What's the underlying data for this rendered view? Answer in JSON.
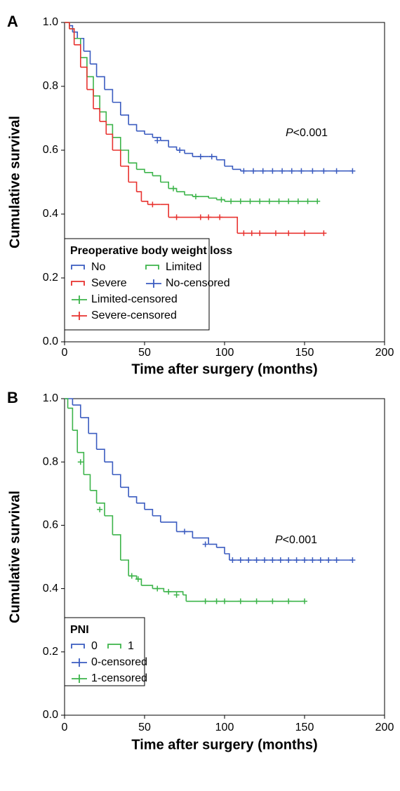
{
  "chart_data": [
    {
      "type": "line",
      "panel_label": "A",
      "ylabel": "Cumulative survival",
      "xlabel": "Time after surgery (months)",
      "xlim": [
        0,
        200
      ],
      "xticks": [
        0,
        50,
        100,
        150,
        200
      ],
      "ylim": [
        0,
        1
      ],
      "yticks": [
        {
          "value": 0,
          "label": "0.0"
        },
        {
          "value": 0.2,
          "label": "0.2"
        },
        {
          "value": 0.4,
          "label": "0.4"
        },
        {
          "value": 0.6,
          "label": "0.6"
        },
        {
          "value": 0.8,
          "label": "0.8"
        },
        {
          "value": 1,
          "label": "1.0"
        }
      ],
      "annotation": {
        "italic": "P",
        "text": "<0.001"
      },
      "legend": {
        "title": "Preoperative body weight loss",
        "position": "lower left"
      },
      "series": [
        {
          "name": "No",
          "color": "#3b5cc0",
          "style": "step",
          "x": [
            0,
            3,
            5,
            8,
            12,
            16,
            20,
            25,
            30,
            35,
            40,
            45,
            50,
            55,
            60,
            65,
            70,
            75,
            80,
            90,
            95,
            100,
            105,
            110,
            180
          ],
          "values": [
            1,
            0.99,
            0.97,
            0.95,
            0.91,
            0.87,
            0.83,
            0.79,
            0.75,
            0.71,
            0.68,
            0.66,
            0.65,
            0.64,
            0.63,
            0.61,
            0.6,
            0.59,
            0.58,
            0.58,
            0.57,
            0.55,
            0.54,
            0.535,
            0.535
          ]
        },
        {
          "name": "Limited",
          "color": "#3cb44a",
          "style": "step",
          "x": [
            0,
            3,
            6,
            10,
            14,
            18,
            22,
            26,
            30,
            35,
            40,
            45,
            50,
            55,
            60,
            65,
            70,
            75,
            80,
            90,
            95,
            100,
            158
          ],
          "values": [
            1,
            0.98,
            0.95,
            0.89,
            0.83,
            0.77,
            0.72,
            0.68,
            0.64,
            0.6,
            0.56,
            0.54,
            0.53,
            0.52,
            0.5,
            0.48,
            0.47,
            0.46,
            0.455,
            0.45,
            0.445,
            0.44,
            0.44
          ]
        },
        {
          "name": "Severe",
          "color": "#e8322f",
          "style": "step",
          "x": [
            0,
            3,
            6,
            10,
            14,
            18,
            22,
            26,
            30,
            35,
            40,
            45,
            48,
            52,
            60,
            65,
            107,
            108,
            162
          ],
          "values": [
            1,
            0.98,
            0.93,
            0.86,
            0.79,
            0.73,
            0.69,
            0.65,
            0.6,
            0.55,
            0.5,
            0.47,
            0.44,
            0.43,
            0.43,
            0.39,
            0.39,
            0.34,
            0.34
          ]
        },
        {
          "name": "No-censored",
          "color": "#3b5cc0",
          "style": "censor",
          "x": [
            58,
            72,
            85,
            92,
            112,
            118,
            124,
            130,
            136,
            142,
            148,
            155,
            162,
            170,
            180
          ],
          "values": [
            0.63,
            0.6,
            0.58,
            0.58,
            0.535,
            0.535,
            0.535,
            0.535,
            0.535,
            0.535,
            0.535,
            0.535,
            0.535,
            0.535,
            0.535
          ]
        },
        {
          "name": "Limited-censored",
          "color": "#3cb44a",
          "style": "censor",
          "x": [
            68,
            82,
            98,
            104,
            110,
            116,
            122,
            128,
            134,
            140,
            146,
            152,
            158
          ],
          "values": [
            0.48,
            0.455,
            0.445,
            0.44,
            0.44,
            0.44,
            0.44,
            0.44,
            0.44,
            0.44,
            0.44,
            0.44,
            0.44
          ]
        },
        {
          "name": "Severe-censored",
          "color": "#e8322f",
          "style": "censor",
          "x": [
            55,
            70,
            85,
            90,
            97,
            112,
            117,
            122,
            132,
            140,
            150,
            162
          ],
          "values": [
            0.43,
            0.39,
            0.39,
            0.39,
            0.39,
            0.34,
            0.34,
            0.34,
            0.34,
            0.34,
            0.34,
            0.34
          ]
        }
      ]
    },
    {
      "type": "line",
      "panel_label": "B",
      "ylabel": "Cumulative survival",
      "xlabel": "Time after surgery (months)",
      "xlim": [
        0,
        200
      ],
      "xticks": [
        0,
        50,
        100,
        150,
        200
      ],
      "ylim": [
        0,
        1
      ],
      "yticks": [
        {
          "value": 0,
          "label": "0.0"
        },
        {
          "value": 0.2,
          "label": "0.2"
        },
        {
          "value": 0.4,
          "label": "0.4"
        },
        {
          "value": 0.6,
          "label": "0.6"
        },
        {
          "value": 0.8,
          "label": "0.8"
        },
        {
          "value": 1,
          "label": "1.0"
        }
      ],
      "annotation": {
        "italic": "P",
        "text": "<0.001"
      },
      "legend": {
        "title": "PNI",
        "position": "lower left"
      },
      "series": [
        {
          "name": "0",
          "color": "#3b5cc0",
          "style": "step",
          "x": [
            0,
            5,
            10,
            15,
            20,
            25,
            30,
            35,
            40,
            45,
            50,
            55,
            60,
            70,
            80,
            90,
            95,
            100,
            103,
            180
          ],
          "values": [
            1,
            0.98,
            0.94,
            0.89,
            0.84,
            0.8,
            0.76,
            0.72,
            0.69,
            0.67,
            0.65,
            0.63,
            0.61,
            0.58,
            0.56,
            0.54,
            0.53,
            0.51,
            0.49,
            0.49
          ]
        },
        {
          "name": "1",
          "color": "#3cb44a",
          "style": "step",
          "x": [
            0,
            2,
            5,
            8,
            12,
            16,
            20,
            25,
            30,
            35,
            40,
            45,
            48,
            55,
            62,
            74,
            76,
            150
          ],
          "values": [
            1,
            0.97,
            0.9,
            0.83,
            0.76,
            0.71,
            0.67,
            0.63,
            0.57,
            0.49,
            0.44,
            0.43,
            0.41,
            0.4,
            0.39,
            0.38,
            0.36,
            0.36
          ]
        },
        {
          "name": "0-censored",
          "color": "#3b5cc0",
          "style": "censor",
          "x": [
            75,
            88,
            105,
            110,
            115,
            120,
            125,
            130,
            135,
            140,
            145,
            150,
            155,
            160,
            165,
            170,
            180
          ],
          "values": [
            0.58,
            0.54,
            0.49,
            0.49,
            0.49,
            0.49,
            0.49,
            0.49,
            0.49,
            0.49,
            0.49,
            0.49,
            0.49,
            0.49,
            0.49,
            0.49,
            0.49
          ]
        },
        {
          "name": "1-censored",
          "color": "#3cb44a",
          "style": "censor",
          "x": [
            10,
            22,
            42,
            46,
            58,
            65,
            70,
            88,
            95,
            100,
            110,
            120,
            130,
            140,
            150
          ],
          "values": [
            0.8,
            0.65,
            0.44,
            0.43,
            0.4,
            0.39,
            0.38,
            0.36,
            0.36,
            0.36,
            0.36,
            0.36,
            0.36,
            0.36,
            0.36
          ]
        }
      ]
    }
  ]
}
